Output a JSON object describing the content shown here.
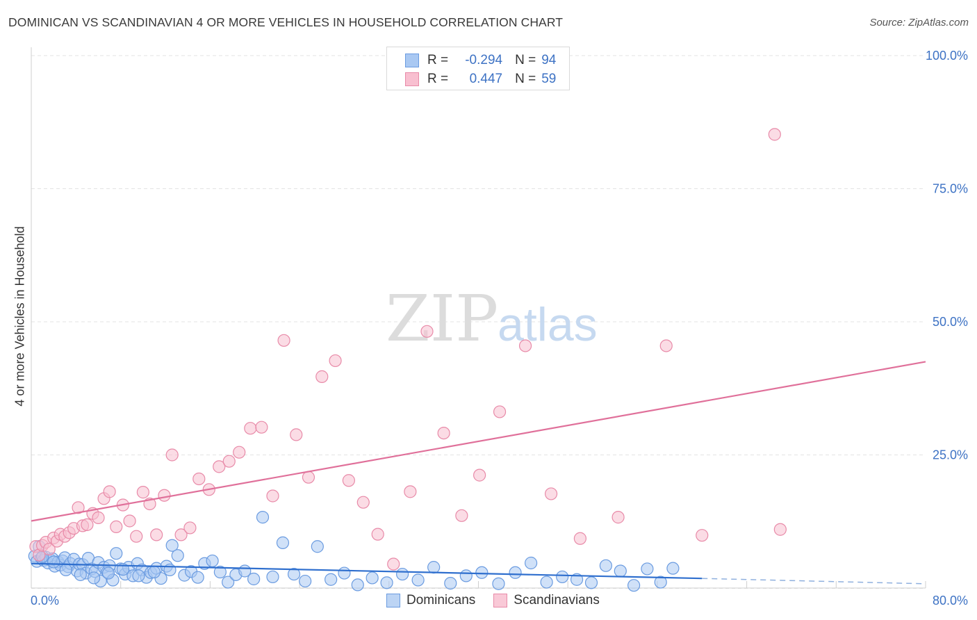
{
  "title": "DOMINICAN VS SCANDINAVIAN 4 OR MORE VEHICLES IN HOUSEHOLD CORRELATION CHART",
  "source": "Source: ZipAtlas.com",
  "watermark": {
    "part1": "ZIP",
    "part2": "atlas"
  },
  "legend": {
    "rows": [
      {
        "r_label": "R =",
        "r_value": "-0.294",
        "n_label": "N =",
        "n_value": "94",
        "color": "#a9c8f2",
        "border": "#6a9be0"
      },
      {
        "r_label": "R =",
        "r_value": "0.447",
        "n_label": "N =",
        "n_value": "59",
        "color": "#f8bfd0",
        "border": "#e88aa8"
      }
    ]
  },
  "bottom_legend": [
    {
      "label": "Dominicans",
      "color": "#bcd4f4",
      "border": "#6a9be0"
    },
    {
      "label": "Scandinavians",
      "color": "#f9c9d7",
      "border": "#e88aa8"
    }
  ],
  "chart_data": {
    "type": "scatter",
    "title": "DOMINICAN VS SCANDINAVIAN 4 OR MORE VEHICLES IN HOUSEHOLD CORRELATION CHART",
    "xlabel": "",
    "ylabel": "4 or more Vehicles in Household",
    "xlim": [
      0,
      80
    ],
    "ylim": [
      0,
      100
    ],
    "x_tick_labels": [
      {
        "value": 0,
        "label": "0.0%"
      },
      {
        "value": 80,
        "label": "80.0%"
      }
    ],
    "y_tick_labels": [
      {
        "value": 25,
        "label": "25.0%"
      },
      {
        "value": 50,
        "label": "50.0%"
      },
      {
        "value": 75,
        "label": "75.0%"
      },
      {
        "value": 100,
        "label": "100.0%"
      }
    ],
    "grid": true,
    "series": [
      {
        "name": "Dominicans",
        "color": "#a9c8f2",
        "edge": "#6a9be0",
        "trend": {
          "x0": 0,
          "y0": 4.6,
          "x1": 60,
          "y1": 1.8,
          "dash_to_x": 80,
          "dash_to_y": 0.8,
          "color": "#2f6fce"
        },
        "x": [
          0.3,
          0.5,
          0.7,
          0.9,
          1.1,
          1.3,
          1.5,
          1.7,
          1.9,
          2.1,
          2.4,
          2.6,
          2.8,
          3.0,
          3.3,
          3.5,
          3.8,
          4.1,
          4.3,
          4.6,
          4.9,
          5.1,
          5.4,
          5.7,
          6.0,
          6.2,
          6.5,
          6.8,
          7.0,
          7.3,
          7.6,
          8.0,
          8.4,
          8.7,
          9.1,
          9.5,
          9.9,
          10.3,
          10.7,
          11.2,
          11.6,
          12.1,
          12.6,
          13.1,
          13.7,
          14.3,
          14.9,
          15.5,
          16.2,
          16.9,
          17.6,
          18.3,
          19.1,
          19.9,
          20.7,
          21.6,
          22.5,
          23.5,
          24.5,
          25.6,
          26.8,
          28.0,
          29.2,
          30.5,
          31.8,
          33.2,
          34.6,
          36.0,
          37.5,
          38.9,
          40.3,
          41.8,
          43.3,
          44.7,
          46.1,
          47.5,
          48.8,
          50.1,
          51.4,
          52.7,
          53.9,
          55.1,
          56.3,
          57.4,
          1.0,
          2.0,
          3.1,
          4.4,
          5.6,
          6.9,
          8.2,
          9.6,
          11.0,
          12.4
        ],
        "y": [
          6.0,
          5.0,
          7.8,
          5.6,
          5.2,
          5.8,
          4.7,
          5.3,
          5.5,
          4.1,
          4.9,
          4.3,
          5.1,
          5.7,
          4.0,
          4.6,
          5.4,
          3.2,
          4.5,
          4.4,
          2.8,
          5.6,
          3.6,
          3.1,
          4.8,
          1.3,
          3.9,
          3.0,
          4.2,
          1.5,
          6.5,
          3.6,
          2.6,
          3.9,
          2.3,
          4.6,
          3.4,
          2.0,
          2.9,
          3.7,
          1.8,
          4.1,
          8.0,
          6.1,
          2.4,
          3.1,
          2.0,
          4.6,
          5.1,
          3.0,
          1.1,
          2.5,
          3.2,
          1.7,
          13.3,
          2.1,
          8.5,
          2.6,
          1.3,
          7.8,
          1.6,
          2.8,
          0.6,
          1.9,
          1.0,
          2.6,
          1.5,
          3.9,
          0.9,
          2.3,
          2.9,
          0.8,
          2.9,
          4.7,
          1.1,
          2.1,
          1.6,
          1.0,
          4.2,
          3.2,
          0.5,
          3.6,
          1.1,
          3.7,
          5.9,
          4.9,
          3.4,
          2.5,
          1.9,
          2.8,
          3.5,
          2.3,
          3.0,
          3.4
        ]
      },
      {
        "name": "Scandinavians",
        "color": "#f8bfd0",
        "edge": "#e88aa8",
        "trend": {
          "x0": 0,
          "y0": 12.6,
          "x1": 80,
          "y1": 42.5,
          "color": "#e0709a"
        },
        "x": [
          0.4,
          0.7,
          1.0,
          1.3,
          1.6,
          2.0,
          2.3,
          2.6,
          3.0,
          3.4,
          3.8,
          4.2,
          4.6,
          5.0,
          5.5,
          6.0,
          6.5,
          7.0,
          7.6,
          8.2,
          8.8,
          9.4,
          10.0,
          10.6,
          11.2,
          11.9,
          12.6,
          13.4,
          14.2,
          15.0,
          15.9,
          16.8,
          17.7,
          18.6,
          19.6,
          20.6,
          21.6,
          22.6,
          23.7,
          24.8,
          26.0,
          27.2,
          28.4,
          29.7,
          31.0,
          32.4,
          33.9,
          35.4,
          36.9,
          38.5,
          40.1,
          41.9,
          44.2,
          46.5,
          49.1,
          52.5,
          56.8,
          60.0,
          67.0
        ],
        "y": [
          7.8,
          6.2,
          8.0,
          8.6,
          7.3,
          9.4,
          8.8,
          10.1,
          9.7,
          10.4,
          11.2,
          15.1,
          11.7,
          11.9,
          14.0,
          13.2,
          16.8,
          18.1,
          11.5,
          15.6,
          12.6,
          9.7,
          18.0,
          15.8,
          10.0,
          17.4,
          25.0,
          10.0,
          11.3,
          20.5,
          18.5,
          22.8,
          23.8,
          25.5,
          30.0,
          30.2,
          17.3,
          46.5,
          28.8,
          20.8,
          39.7,
          42.7,
          20.2,
          16.1,
          10.1,
          4.5,
          18.1,
          48.2,
          29.1,
          13.6,
          21.2,
          33.1,
          45.5,
          17.7,
          9.3,
          13.3,
          45.5,
          9.9,
          11.0
        ]
      }
    ],
    "extra_points_scandinavian": [
      {
        "x": 66.5,
        "y": 85.2
      }
    ]
  }
}
